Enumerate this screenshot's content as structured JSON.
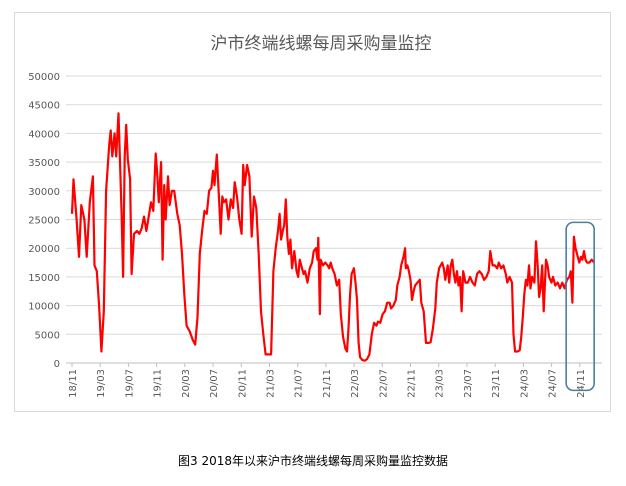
{
  "caption": "图3 2018年以来沪市终端线螺每周采购量监控数据",
  "chart_data": {
    "type": "line",
    "title": "沪市终端线螺每周采购量监控",
    "xlabel": "",
    "ylabel": "",
    "ylim": [
      0,
      50000
    ],
    "yticks": [
      0,
      5000,
      10000,
      15000,
      20000,
      25000,
      30000,
      35000,
      40000,
      45000,
      50000
    ],
    "xticks": [
      "18/11",
      "19/03",
      "19/07",
      "19/11",
      "20/03",
      "20/07",
      "20/11",
      "21/03",
      "21/07",
      "21/11",
      "22/03",
      "22/07",
      "22/11",
      "23/03",
      "23/07",
      "23/11",
      "24/03",
      "24/07",
      "24/11"
    ],
    "grid": "horizontal",
    "line_color": "#ff0000",
    "highlight_color": "#4a7fa0",
    "highlight_range": [
      "24/08",
      "24/12"
    ],
    "series": [
      {
        "values": [
          [
            0,
            26000
          ],
          [
            0.1,
            32000
          ],
          [
            0.3,
            25000
          ],
          [
            0.45,
            18500
          ],
          [
            0.6,
            27500
          ],
          [
            0.8,
            25000
          ],
          [
            0.95,
            18500
          ],
          [
            1.15,
            28000
          ],
          [
            1.35,
            32500
          ],
          [
            1.45,
            17000
          ],
          [
            1.6,
            16000
          ],
          [
            1.75,
            10000
          ],
          [
            1.9,
            2000
          ],
          [
            2.05,
            9000
          ],
          [
            2.2,
            30000
          ],
          [
            2.4,
            38000
          ],
          [
            2.5,
            40500
          ],
          [
            2.6,
            36000
          ],
          [
            2.75,
            40000
          ],
          [
            2.85,
            36000
          ],
          [
            3.0,
            43500
          ],
          [
            3.2,
            26000
          ],
          [
            3.3,
            15000
          ],
          [
            3.4,
            36000
          ],
          [
            3.5,
            41500
          ],
          [
            3.6,
            35500
          ],
          [
            3.75,
            32000
          ],
          [
            3.85,
            15500
          ],
          [
            4.0,
            22500
          ],
          [
            4.2,
            23000
          ],
          [
            4.35,
            22500
          ],
          [
            4.5,
            23500
          ],
          [
            4.65,
            25500
          ],
          [
            4.8,
            23000
          ],
          [
            4.95,
            25500
          ],
          [
            5.1,
            28000
          ],
          [
            5.25,
            26500
          ],
          [
            5.4,
            36500
          ],
          [
            5.5,
            33000
          ],
          [
            5.6,
            28000
          ],
          [
            5.75,
            35000
          ],
          [
            5.85,
            18000
          ],
          [
            5.95,
            31000
          ],
          [
            6.05,
            25000
          ],
          [
            6.2,
            32500
          ],
          [
            6.3,
            27500
          ],
          [
            6.45,
            30000
          ],
          [
            6.6,
            30000
          ],
          [
            6.8,
            26000
          ],
          [
            6.95,
            24000
          ],
          [
            7.1,
            19000
          ],
          [
            7.25,
            12000
          ],
          [
            7.4,
            6500
          ],
          [
            7.6,
            5500
          ],
          [
            7.8,
            4000
          ],
          [
            7.95,
            3200
          ],
          [
            8.1,
            8000
          ],
          [
            8.25,
            19000
          ],
          [
            8.4,
            23000
          ],
          [
            8.55,
            26500
          ],
          [
            8.7,
            26000
          ],
          [
            8.85,
            30000
          ],
          [
            9.0,
            30500
          ],
          [
            9.1,
            33500
          ],
          [
            9.2,
            31000
          ],
          [
            9.35,
            36300
          ],
          [
            9.5,
            28000
          ],
          [
            9.6,
            22500
          ],
          [
            9.7,
            29000
          ],
          [
            9.8,
            28000
          ],
          [
            9.95,
            28500
          ],
          [
            10.1,
            25000
          ],
          [
            10.25,
            28500
          ],
          [
            10.4,
            27000
          ],
          [
            10.5,
            31500
          ],
          [
            10.65,
            29000
          ],
          [
            10.8,
            25000
          ],
          [
            10.95,
            22500
          ],
          [
            11.05,
            34500
          ],
          [
            11.15,
            31000
          ],
          [
            11.3,
            34500
          ],
          [
            11.45,
            32500
          ],
          [
            11.6,
            22000
          ],
          [
            11.75,
            29000
          ],
          [
            11.9,
            27000
          ],
          [
            12.05,
            19000
          ],
          [
            12.2,
            9000
          ],
          [
            12.35,
            5000
          ],
          [
            12.5,
            1500
          ],
          [
            12.7,
            1500
          ],
          [
            12.85,
            1500
          ],
          [
            13.0,
            16000
          ],
          [
            13.15,
            20000
          ],
          [
            13.3,
            23000
          ],
          [
            13.4,
            26000
          ],
          [
            13.5,
            21500
          ],
          [
            13.6,
            23000
          ],
          [
            13.7,
            24000
          ],
          [
            13.8,
            28500
          ],
          [
            13.9,
            22000
          ],
          [
            14.0,
            19000
          ],
          [
            14.1,
            21500
          ],
          [
            14.2,
            16500
          ],
          [
            14.35,
            19500
          ],
          [
            14.5,
            16000
          ],
          [
            14.6,
            15000
          ],
          [
            14.7,
            18000
          ],
          [
            14.85,
            16500
          ],
          [
            14.95,
            15500
          ],
          [
            15.05,
            16000
          ],
          [
            15.2,
            14000
          ],
          [
            15.35,
            16500
          ],
          [
            15.5,
            17500
          ],
          [
            15.6,
            19500
          ],
          [
            15.75,
            20000
          ],
          [
            15.85,
            18000
          ],
          [
            15.9,
            21800
          ],
          [
            16.0,
            8500
          ],
          [
            16.05,
            18000
          ],
          [
            16.2,
            17000
          ],
          [
            16.35,
            17500
          ],
          [
            16.5,
            17000
          ],
          [
            16.6,
            16500
          ],
          [
            16.7,
            17500
          ],
          [
            16.8,
            16500
          ],
          [
            16.95,
            15500
          ],
          [
            17.1,
            13500
          ],
          [
            17.25,
            14500
          ],
          [
            17.35,
            8500
          ],
          [
            17.5,
            4500
          ],
          [
            17.65,
            2500
          ],
          [
            17.75,
            2000
          ],
          [
            17.85,
            6000
          ],
          [
            17.95,
            12000
          ],
          [
            18.05,
            15500
          ],
          [
            18.2,
            16500
          ],
          [
            18.3,
            14000
          ],
          [
            18.4,
            11000
          ],
          [
            18.5,
            3500
          ],
          [
            18.6,
            1000
          ],
          [
            18.75,
            500
          ],
          [
            18.9,
            400
          ],
          [
            19.05,
            700
          ],
          [
            19.2,
            1500
          ],
          [
            19.35,
            5000
          ],
          [
            19.5,
            7000
          ],
          [
            19.65,
            6500
          ],
          [
            19.75,
            7200
          ],
          [
            19.9,
            7000
          ],
          [
            20.05,
            8500
          ],
          [
            20.2,
            9000
          ],
          [
            20.35,
            10500
          ],
          [
            20.5,
            10500
          ],
          [
            20.6,
            9500
          ],
          [
            20.75,
            10000
          ],
          [
            20.9,
            11000
          ],
          [
            21.0,
            13500
          ],
          [
            21.15,
            15000
          ],
          [
            21.25,
            17000
          ],
          [
            21.4,
            18500
          ],
          [
            21.5,
            20000
          ],
          [
            21.55,
            16500
          ],
          [
            21.65,
            17000
          ],
          [
            21.75,
            16000
          ],
          [
            21.85,
            14500
          ],
          [
            21.95,
            11000
          ],
          [
            22.05,
            12500
          ],
          [
            22.15,
            13500
          ],
          [
            22.3,
            14000
          ],
          [
            22.45,
            14500
          ],
          [
            22.55,
            10500
          ],
          [
            22.7,
            9000
          ],
          [
            22.85,
            3500
          ],
          [
            23.0,
            3500
          ],
          [
            23.15,
            3600
          ],
          [
            23.3,
            6000
          ],
          [
            23.45,
            9500
          ],
          [
            23.55,
            14000
          ],
          [
            23.7,
            16500
          ],
          [
            23.8,
            17000
          ],
          [
            23.9,
            17500
          ],
          [
            24.0,
            16500
          ],
          [
            24.1,
            14500
          ],
          [
            24.25,
            17000
          ],
          [
            24.35,
            14000
          ],
          [
            24.45,
            17000
          ],
          [
            24.55,
            18000
          ],
          [
            24.65,
            15500
          ],
          [
            24.75,
            14000
          ],
          [
            24.85,
            16000
          ],
          [
            24.95,
            13500
          ],
          [
            25.05,
            15000
          ],
          [
            25.15,
            9000
          ],
          [
            25.25,
            16000
          ],
          [
            25.4,
            14000
          ],
          [
            25.55,
            14000
          ],
          [
            25.7,
            15000
          ],
          [
            25.85,
            14000
          ],
          [
            26.0,
            13500
          ],
          [
            26.15,
            15500
          ],
          [
            26.3,
            16000
          ],
          [
            26.45,
            15500
          ],
          [
            26.6,
            14500
          ],
          [
            26.75,
            15000
          ],
          [
            26.9,
            16000
          ],
          [
            27.0,
            19500
          ],
          [
            27.15,
            17000
          ],
          [
            27.3,
            17000
          ],
          [
            27.45,
            16500
          ],
          [
            27.55,
            17500
          ],
          [
            27.7,
            16500
          ],
          [
            27.85,
            17000
          ],
          [
            28.0,
            15500
          ],
          [
            28.1,
            14000
          ],
          [
            28.25,
            15000
          ],
          [
            28.4,
            14000
          ],
          [
            28.5,
            5000
          ],
          [
            28.6,
            2000
          ],
          [
            28.75,
            2000
          ],
          [
            28.9,
            2200
          ],
          [
            29.0,
            4500
          ],
          [
            29.1,
            8000
          ],
          [
            29.2,
            12000
          ],
          [
            29.3,
            14500
          ],
          [
            29.4,
            13500
          ],
          [
            29.5,
            17000
          ],
          [
            29.6,
            13000
          ],
          [
            29.7,
            15000
          ],
          [
            29.85,
            14000
          ],
          [
            29.95,
            21200
          ],
          [
            30.05,
            17500
          ],
          [
            30.15,
            11500
          ],
          [
            30.25,
            13000
          ],
          [
            30.35,
            17000
          ],
          [
            30.45,
            9000
          ],
          [
            30.6,
            18000
          ],
          [
            30.7,
            17000
          ],
          [
            30.8,
            15000
          ],
          [
            30.95,
            14000
          ],
          [
            31.05,
            15000
          ],
          [
            31.2,
            13500
          ],
          [
            31.35,
            14000
          ],
          [
            31.5,
            13000
          ],
          [
            31.65,
            14000
          ],
          [
            31.8,
            13000
          ],
          [
            31.95,
            14500
          ],
          [
            32.1,
            15000
          ],
          [
            32.2,
            16000
          ],
          [
            32.3,
            10500
          ],
          [
            32.4,
            22000
          ],
          [
            32.5,
            20000
          ],
          [
            32.6,
            19000
          ],
          [
            32.75,
            17500
          ],
          [
            32.85,
            18500
          ],
          [
            32.95,
            18000
          ],
          [
            33.05,
            19500
          ],
          [
            33.15,
            18000
          ],
          [
            33.25,
            17500
          ],
          [
            33.4,
            17500
          ],
          [
            33.55,
            18000
          ],
          [
            33.7,
            17500
          ]
        ]
      }
    ]
  }
}
